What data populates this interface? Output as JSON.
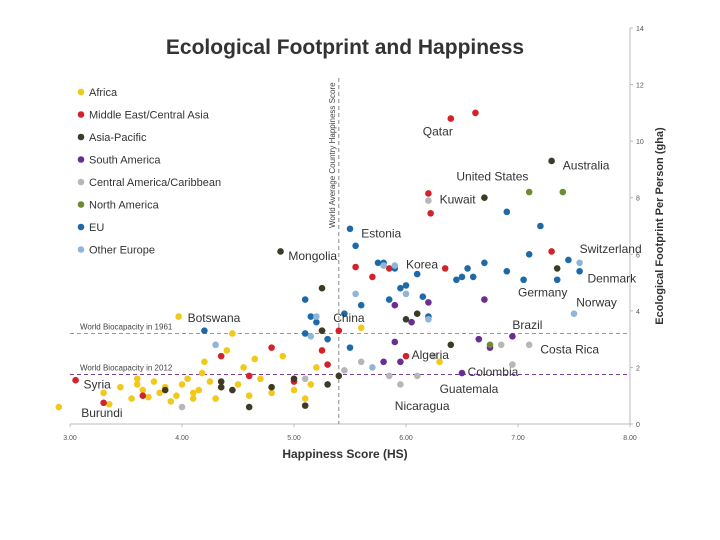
{
  "chart_data": {
    "type": "scatter",
    "title": "Ecological Footprint and Happiness",
    "xlabel": "Happiness Score (HS)",
    "ylabel": "Ecological Footprint Per Person (gha)",
    "xlim": [
      3.0,
      8.0
    ],
    "ylim": [
      0,
      14
    ],
    "x_ticks": [
      "3.00",
      "4.00",
      "5.00",
      "6.00",
      "7.00",
      "8.00"
    ],
    "y_ticks": [
      "0",
      "2",
      "4",
      "6",
      "8",
      "10",
      "12",
      "14"
    ],
    "grid": false,
    "legend_position": "top-left",
    "reference_lines": [
      {
        "orientation": "vertical",
        "value": 5.4,
        "label": "World Average Country Happiness Score",
        "color": "#888888"
      },
      {
        "orientation": "horizontal",
        "value": 3.2,
        "label": "World Biocapacity in 1961",
        "color": "#999999"
      },
      {
        "orientation": "horizontal",
        "value": 1.75,
        "label": "World Biocapacity in 2012",
        "color": "#7b3fa0"
      }
    ],
    "series": [
      {
        "name": "Africa",
        "color": "#f2c81b",
        "points": [
          [
            2.9,
            0.6
          ],
          [
            3.3,
            1.1
          ],
          [
            3.35,
            0.7
          ],
          [
            3.45,
            1.3
          ],
          [
            3.55,
            0.9
          ],
          [
            3.6,
            1.4
          ],
          [
            3.65,
            1.2
          ],
          [
            3.7,
            0.95
          ],
          [
            3.75,
            1.5
          ],
          [
            3.8,
            1.1
          ],
          [
            3.85,
            1.3
          ],
          [
            3.9,
            0.8
          ],
          [
            3.95,
            1.0
          ],
          [
            3.97,
            3.8
          ],
          [
            4.0,
            1.4
          ],
          [
            4.05,
            1.6
          ],
          [
            4.1,
            0.9
          ],
          [
            4.15,
            1.2
          ],
          [
            4.18,
            1.8
          ],
          [
            4.2,
            2.2
          ],
          [
            4.25,
            1.5
          ],
          [
            4.3,
            0.9
          ],
          [
            4.35,
            1.3
          ],
          [
            4.4,
            2.6
          ],
          [
            4.45,
            3.2
          ],
          [
            4.5,
            1.4
          ],
          [
            4.55,
            2.0
          ],
          [
            4.6,
            1.0
          ],
          [
            4.65,
            2.3
          ],
          [
            4.7,
            1.6
          ],
          [
            4.8,
            1.1
          ],
          [
            4.9,
            2.4
          ],
          [
            5.0,
            1.2
          ],
          [
            5.1,
            0.9
          ],
          [
            5.15,
            1.4
          ],
          [
            5.2,
            2.0
          ],
          [
            5.6,
            3.4
          ],
          [
            6.3,
            2.2
          ],
          [
            4.1,
            1.1
          ],
          [
            3.6,
            1.6
          ]
        ]
      },
      {
        "name": "Middle East/Central Asia",
        "color": "#d2232a",
        "points": [
          [
            3.05,
            1.55
          ],
          [
            3.3,
            0.75
          ],
          [
            3.65,
            1.0
          ],
          [
            4.35,
            2.4
          ],
          [
            4.6,
            1.7
          ],
          [
            4.8,
            2.7
          ],
          [
            5.0,
            1.5
          ],
          [
            5.25,
            2.6
          ],
          [
            5.25,
            3.3
          ],
          [
            5.4,
            3.3
          ],
          [
            5.55,
            5.55
          ],
          [
            5.7,
            5.2
          ],
          [
            5.85,
            5.5
          ],
          [
            6.0,
            2.4
          ],
          [
            6.2,
            8.15
          ],
          [
            6.22,
            7.45
          ],
          [
            6.35,
            5.5
          ],
          [
            6.4,
            10.8
          ],
          [
            6.62,
            11.0
          ],
          [
            7.3,
            6.1
          ],
          [
            5.3,
            2.1
          ]
        ]
      },
      {
        "name": "Asia-Pacific",
        "color": "#3d3a25",
        "points": [
          [
            3.85,
            1.2
          ],
          [
            4.35,
            1.5
          ],
          [
            4.35,
            1.3
          ],
          [
            4.6,
            0.6
          ],
          [
            4.8,
            1.3
          ],
          [
            4.88,
            6.1
          ],
          [
            5.0,
            1.6
          ],
          [
            5.1,
            0.65
          ],
          [
            5.25,
            3.3
          ],
          [
            5.25,
            4.8
          ],
          [
            5.3,
            1.4
          ],
          [
            5.4,
            1.7
          ],
          [
            6.0,
            3.7
          ],
          [
            6.1,
            3.9
          ],
          [
            6.4,
            2.8
          ],
          [
            6.7,
            8.0
          ],
          [
            7.3,
            9.3
          ],
          [
            7.35,
            5.5
          ],
          [
            4.45,
            1.2
          ]
        ]
      },
      {
        "name": "South America",
        "color": "#6a2d91",
        "points": [
          [
            5.8,
            2.2
          ],
          [
            5.9,
            2.9
          ],
          [
            5.95,
            2.2
          ],
          [
            6.05,
            3.6
          ],
          [
            6.2,
            4.3
          ],
          [
            6.5,
            1.8
          ],
          [
            6.65,
            3.0
          ],
          [
            6.7,
            4.4
          ],
          [
            6.75,
            2.7
          ],
          [
            6.95,
            3.1
          ],
          [
            5.9,
            4.2
          ]
        ]
      },
      {
        "name": "Central America/Caribbean",
        "color": "#b7b7b7",
        "points": [
          [
            4.0,
            0.6
          ],
          [
            5.1,
            1.6
          ],
          [
            5.45,
            1.9
          ],
          [
            5.6,
            2.2
          ],
          [
            5.85,
            1.7
          ],
          [
            5.95,
            1.4
          ],
          [
            6.1,
            1.7
          ],
          [
            6.25,
            2.4
          ],
          [
            6.85,
            2.8
          ],
          [
            6.95,
            2.1
          ],
          [
            7.1,
            2.8
          ],
          [
            6.2,
            7.9
          ]
        ]
      },
      {
        "name": "North America",
        "color": "#6b8c35",
        "points": [
          [
            6.75,
            2.8
          ],
          [
            7.1,
            8.2
          ],
          [
            7.4,
            8.2
          ]
        ]
      },
      {
        "name": "EU",
        "color": "#1e6aa8",
        "points": [
          [
            4.2,
            3.3
          ],
          [
            5.1,
            4.4
          ],
          [
            5.15,
            3.8
          ],
          [
            5.2,
            3.6
          ],
          [
            5.3,
            3.0
          ],
          [
            5.45,
            3.9
          ],
          [
            5.5,
            2.7
          ],
          [
            5.5,
            6.9
          ],
          [
            5.55,
            6.3
          ],
          [
            5.6,
            4.2
          ],
          [
            5.75,
            5.7
          ],
          [
            5.8,
            5.7
          ],
          [
            5.85,
            4.4
          ],
          [
            5.9,
            5.5
          ],
          [
            5.95,
            4.8
          ],
          [
            6.0,
            4.9
          ],
          [
            6.1,
            5.3
          ],
          [
            6.15,
            4.5
          ],
          [
            6.2,
            3.8
          ],
          [
            6.45,
            5.1
          ],
          [
            6.5,
            5.2
          ],
          [
            6.55,
            5.5
          ],
          [
            6.6,
            5.2
          ],
          [
            6.7,
            5.7
          ],
          [
            6.9,
            7.5
          ],
          [
            6.9,
            5.4
          ],
          [
            7.05,
            5.1
          ],
          [
            7.1,
            6.0
          ],
          [
            7.2,
            7.0
          ],
          [
            7.35,
            5.1
          ],
          [
            7.45,
            5.8
          ],
          [
            7.55,
            5.4
          ],
          [
            5.1,
            3.2
          ]
        ]
      },
      {
        "name": "Other Europe",
        "color": "#8fb5d9",
        "points": [
          [
            4.3,
            2.8
          ],
          [
            5.15,
            3.1
          ],
          [
            5.2,
            3.8
          ],
          [
            5.55,
            4.6
          ],
          [
            5.8,
            5.6
          ],
          [
            5.9,
            5.6
          ],
          [
            6.0,
            4.6
          ],
          [
            6.2,
            3.7
          ],
          [
            7.5,
            3.9
          ],
          [
            7.55,
            5.7
          ],
          [
            5.7,
            2.0
          ]
        ]
      }
    ],
    "annotations": [
      {
        "text": "Qatar",
        "x": 6.15,
        "y": 10.2,
        "anchor": "start"
      },
      {
        "text": "Australia",
        "x": 7.4,
        "y": 9.0,
        "anchor": "start"
      },
      {
        "text": "United States",
        "x": 6.45,
        "y": 8.6,
        "anchor": "start"
      },
      {
        "text": "Kuwait",
        "x": 6.3,
        "y": 7.8,
        "anchor": "start"
      },
      {
        "text": "Estonia",
        "x": 5.6,
        "y": 6.6,
        "anchor": "start"
      },
      {
        "text": "Mongolia",
        "x": 4.95,
        "y": 5.8,
        "anchor": "start"
      },
      {
        "text": "Korea",
        "x": 6.0,
        "y": 5.5,
        "anchor": "start"
      },
      {
        "text": "Switzerland",
        "x": 7.55,
        "y": 6.05,
        "anchor": "start"
      },
      {
        "text": "Denmark",
        "x": 7.62,
        "y": 5.0,
        "anchor": "start"
      },
      {
        "text": "Germany",
        "x": 7.0,
        "y": 4.5,
        "anchor": "start"
      },
      {
        "text": "Norway",
        "x": 7.52,
        "y": 4.15,
        "anchor": "start"
      },
      {
        "text": "Botswana",
        "x": 4.05,
        "y": 3.6,
        "anchor": "start"
      },
      {
        "text": "China",
        "x": 5.35,
        "y": 3.6,
        "anchor": "start"
      },
      {
        "text": "Brazil",
        "x": 6.95,
        "y": 3.35,
        "anchor": "start"
      },
      {
        "text": "Costa Rica",
        "x": 7.2,
        "y": 2.5,
        "anchor": "start"
      },
      {
        "text": "Algeria",
        "x": 6.05,
        "y": 2.3,
        "anchor": "start"
      },
      {
        "text": "Colombia",
        "x": 6.55,
        "y": 1.7,
        "anchor": "start"
      },
      {
        "text": "Guatemala",
        "x": 6.3,
        "y": 1.1,
        "anchor": "start"
      },
      {
        "text": "Nicaragua",
        "x": 5.9,
        "y": 0.5,
        "anchor": "start"
      },
      {
        "text": "Syria",
        "x": 3.12,
        "y": 1.25,
        "anchor": "start"
      },
      {
        "text": "Burundi",
        "x": 3.1,
        "y": 0.25,
        "anchor": "start"
      }
    ]
  }
}
